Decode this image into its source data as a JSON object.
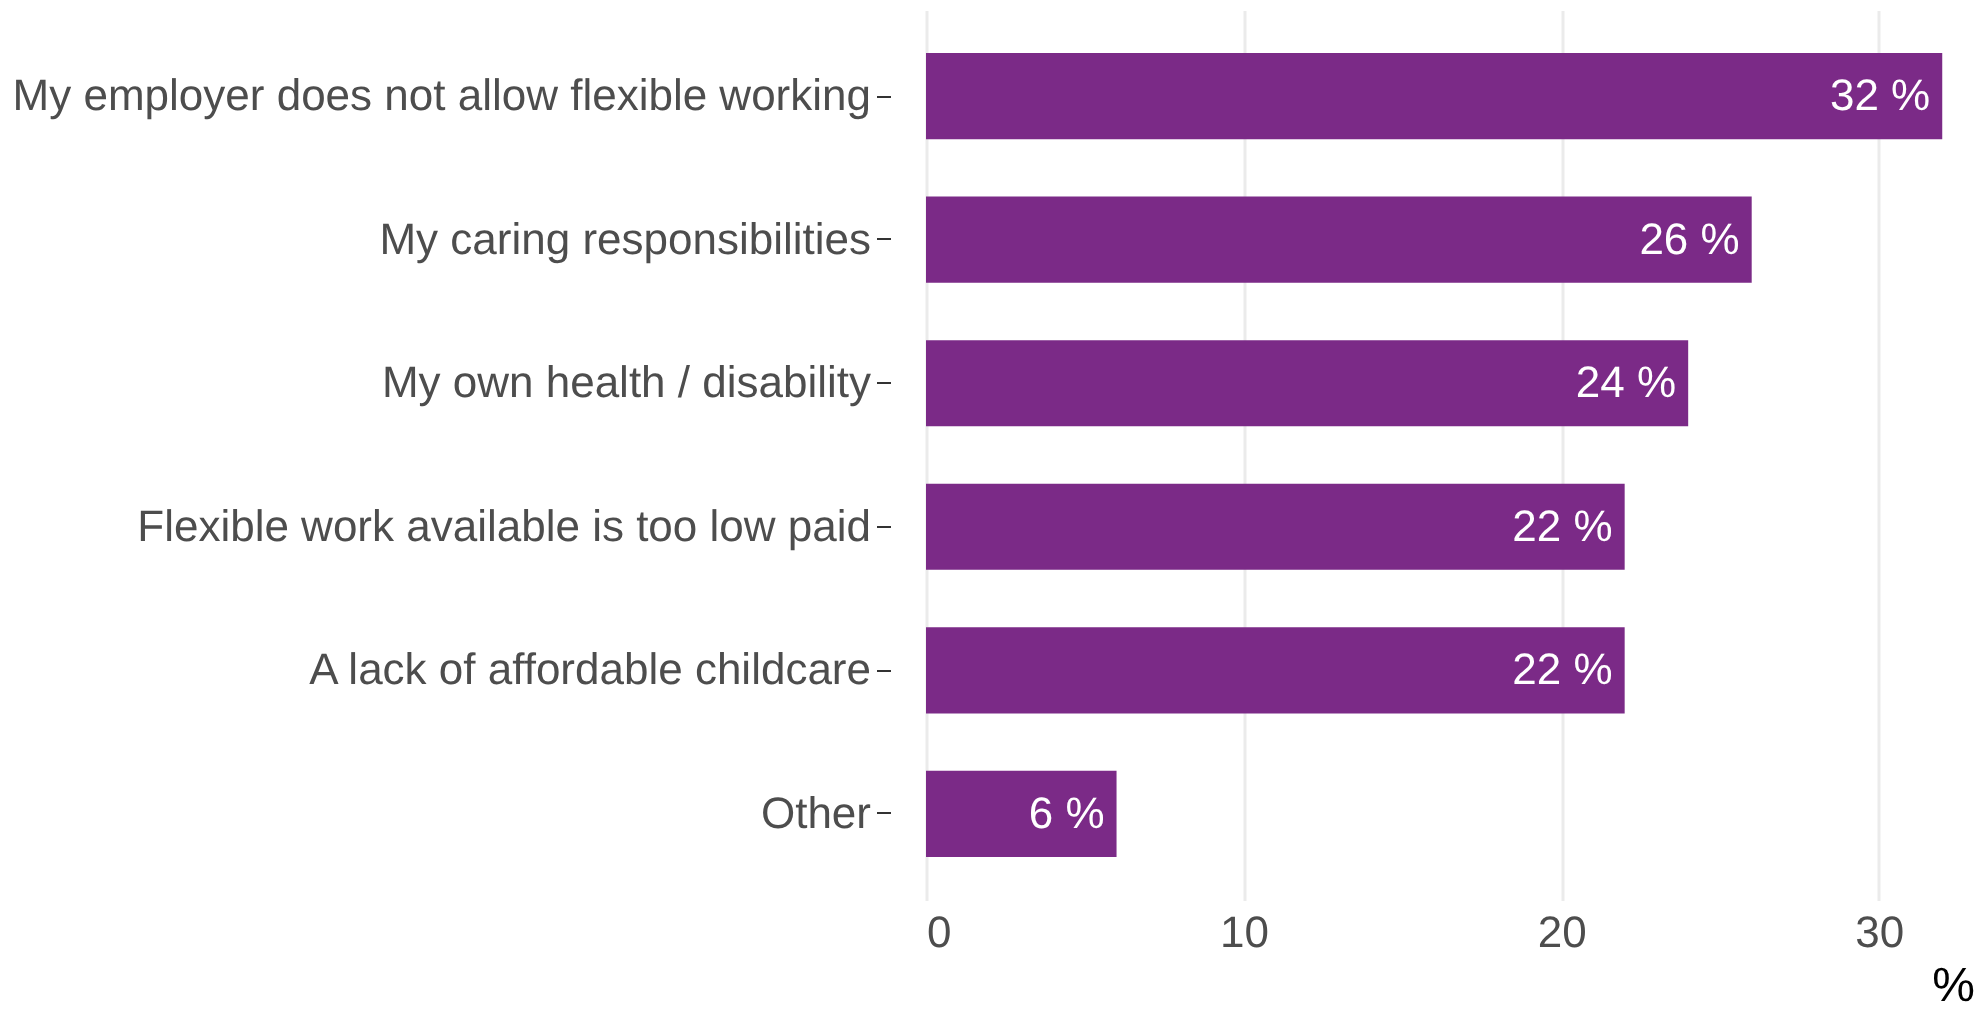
{
  "chart_data": {
    "type": "bar",
    "orientation": "horizontal",
    "categories": [
      "My employer does not allow flexible working",
      "My caring responsibilities",
      "My own health / disability",
      "Flexible work available is too low paid",
      "A lack of affordable childcare",
      "Other"
    ],
    "values": [
      32,
      26,
      24,
      22,
      22,
      6
    ],
    "value_labels": [
      "32 %",
      "26 %",
      "24 %",
      "22 %",
      "22 %",
      "6 %"
    ],
    "color": "#7b2a87",
    "xlabel": "%",
    "xlim": [
      0,
      33
    ],
    "xticks": [
      0,
      10,
      20,
      30
    ],
    "grid": "x"
  }
}
